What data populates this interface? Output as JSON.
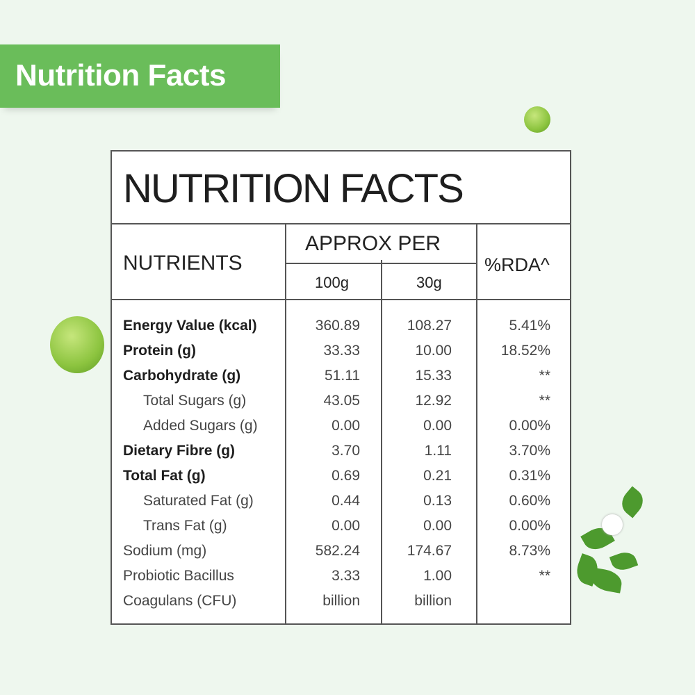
{
  "banner": {
    "title": "Nutrition Facts"
  },
  "table": {
    "title": "NUTRITION FACTS",
    "headers": {
      "nutrients": "NUTRIENTS",
      "approx_per": "APPROX PER",
      "per_100g": "100g",
      "per_30g": "30g",
      "rda": "%RDA^"
    },
    "rows": [
      {
        "name": "Energy Value (kcal)",
        "v100": "360.89",
        "v30": "108.27",
        "rda": "5.41%",
        "style": "b"
      },
      {
        "name": "Protein (g)",
        "v100": "33.33",
        "v30": "10.00",
        "rda": "18.52%",
        "style": "b"
      },
      {
        "name": "Carbohydrate (g)",
        "v100": "51.11",
        "v30": "15.33",
        "rda": "**",
        "style": "b"
      },
      {
        "name": "Total Sugars (g)",
        "v100": "43.05",
        "v30": "12.92",
        "rda": "**",
        "style": "i"
      },
      {
        "name": "Added Sugars (g)",
        "v100": "0.00",
        "v30": "0.00",
        "rda": "0.00%",
        "style": "i"
      },
      {
        "name": "Dietary Fibre (g)",
        "v100": "3.70",
        "v30": "1.11",
        "rda": "3.70%",
        "style": "b"
      },
      {
        "name": "Total Fat (g)",
        "v100": "0.69",
        "v30": "0.21",
        "rda": "0.31%",
        "style": "b"
      },
      {
        "name": "Saturated Fat (g)",
        "v100": "0.44",
        "v30": "0.13",
        "rda": "0.60%",
        "style": "i"
      },
      {
        "name": "Trans Fat (g)",
        "v100": "0.00",
        "v30": "0.00",
        "rda": "0.00%",
        "style": "i"
      },
      {
        "name": "Sodium (mg)",
        "v100": "582.24",
        "v30": "174.67",
        "rda": "8.73%",
        "style": "r"
      },
      {
        "name": "Probiotic Bacillus",
        "v100": "3.33",
        "v30": "1.00",
        "rda": "**",
        "style": "r"
      },
      {
        "name": "Coagulans (CFU)",
        "v100": "billion",
        "v30": "billion",
        "rda": "",
        "style": "r"
      }
    ]
  },
  "colors": {
    "banner": "#6abd5a",
    "background": "#eef7ee"
  }
}
